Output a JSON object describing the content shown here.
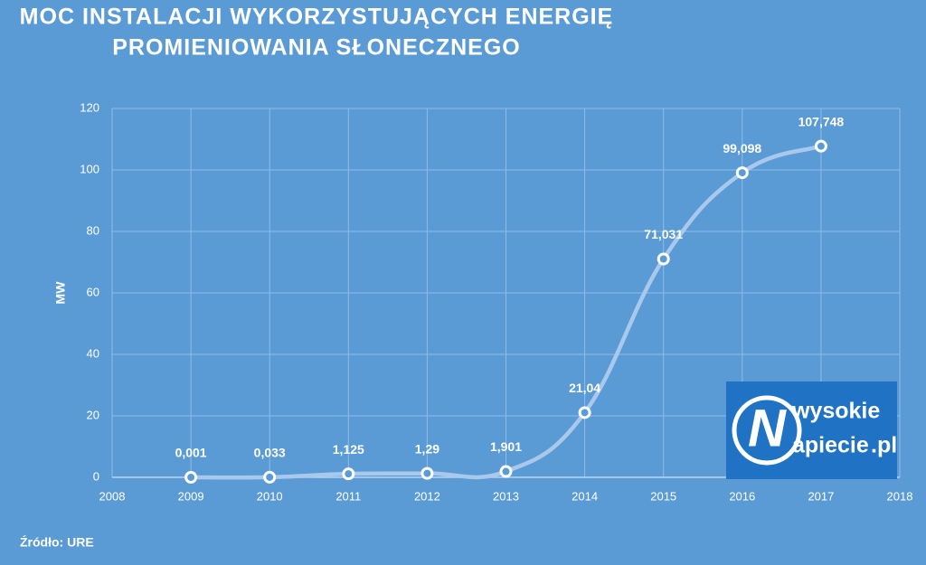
{
  "chart_data": {
    "type": "line",
    "title": [
      "MOC INSTALACJI WYKORZYSTUJĄCYCH ENERGIĘ",
      "PROMIENIOWANIA SŁONECZNEGO"
    ],
    "y_label": "MW",
    "x": [
      2009,
      2010,
      2011,
      2012,
      2013,
      2014,
      2015,
      2016,
      2017
    ],
    "values": [
      0.001,
      0.033,
      1.125,
      1.29,
      1.901,
      21.04,
      71.031,
      99.098,
      107.748
    ],
    "value_labels": [
      "0,001",
      "0,033",
      "1,125",
      "1,29",
      "1,901",
      "21,04",
      "71,031",
      "99,098",
      "107,748"
    ],
    "color": "#a9c9ec",
    "xlim": [
      2008,
      2018
    ],
    "xticks": [
      2008,
      2009,
      2010,
      2011,
      2012,
      2013,
      2014,
      2015,
      2016,
      2017,
      2018
    ],
    "ylim": [
      0,
      120
    ],
    "yticks": [
      0,
      20,
      40,
      60,
      80,
      100,
      120
    ],
    "grid": true,
    "source": "Źródło: URE",
    "logo": {
      "mark": "N",
      "top": "wysokie",
      "bottom": "apiecie",
      "suffix": ".pl"
    }
  }
}
